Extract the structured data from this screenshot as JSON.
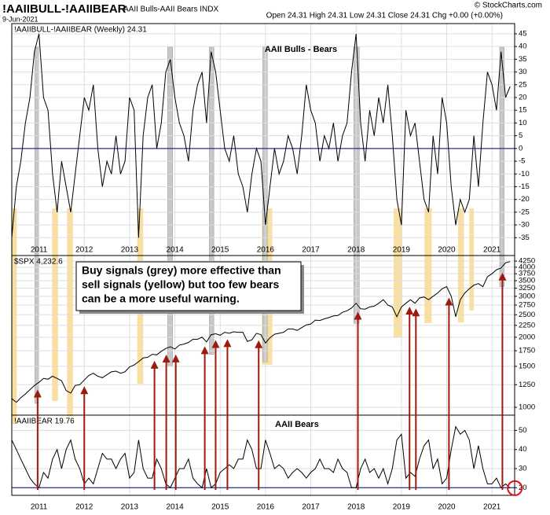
{
  "header": {
    "symbol": "!AAIIBULL-!AAIIBEAR",
    "name": "AAII Bulls-AAII Bears INDX",
    "quote": "Open 24.31 High 24.31 Low 24.31 Close 24.31 Chg +0.00 (+0.00%)",
    "copyright": "© StockCharts.com",
    "date": "9-Jun-2021"
  },
  "annotation": [
    "Buy signals (grey) more effective than",
    "sell signals (yellow) but too few bears",
    "can be a more useful warning."
  ],
  "chart_data": {
    "type": "line",
    "x": [
      2010.4,
      2010.5,
      2010.6,
      2010.7,
      2010.8,
      2010.9,
      2011.0,
      2011.1,
      2011.2,
      2011.3,
      2011.4,
      2011.5,
      2011.6,
      2011.7,
      2011.8,
      2011.9,
      2012.0,
      2012.1,
      2012.2,
      2012.3,
      2012.4,
      2012.5,
      2012.6,
      2012.7,
      2012.8,
      2012.9,
      2013.0,
      2013.1,
      2013.2,
      2013.3,
      2013.4,
      2013.5,
      2013.6,
      2013.7,
      2013.8,
      2013.9,
      2014.0,
      2014.1,
      2014.2,
      2014.3,
      2014.4,
      2014.5,
      2014.6,
      2014.7,
      2014.8,
      2014.9,
      2015.0,
      2015.1,
      2015.2,
      2015.3,
      2015.4,
      2015.5,
      2015.6,
      2015.7,
      2015.8,
      2015.9,
      2016.0,
      2016.1,
      2016.2,
      2016.3,
      2016.4,
      2016.5,
      2016.6,
      2016.7,
      2016.8,
      2016.9,
      2017.0,
      2017.1,
      2017.2,
      2017.3,
      2017.4,
      2017.5,
      2017.6,
      2017.7,
      2017.8,
      2017.9,
      2018.0,
      2018.1,
      2018.2,
      2018.3,
      2018.4,
      2018.5,
      2018.6,
      2018.7,
      2018.8,
      2018.9,
      2019.0,
      2019.1,
      2019.2,
      2019.3,
      2019.4,
      2019.5,
      2019.6,
      2019.7,
      2019.8,
      2019.9,
      2020.0,
      2020.1,
      2020.2,
      2020.3,
      2020.4,
      2020.5,
      2020.6,
      2020.7,
      2020.8,
      2020.9,
      2021.0,
      2021.1,
      2021.2,
      2021.3,
      2021.4
    ],
    "xlim": [
      2010.4,
      2021.5
    ],
    "xticks": [
      2011,
      2012,
      2013,
      2014,
      2015,
      2016,
      2017,
      2018,
      2019,
      2020,
      2021
    ],
    "grid": true,
    "panels": [
      {
        "label": "!AAIIBULL-!AAIIBEAR (Weekly) 24.31",
        "title": "AAII Bulls - Bears",
        "color": "#000000",
        "log": false,
        "ylim": [
          -42,
          49
        ],
        "yticks": [
          -35,
          -30,
          -25,
          -20,
          -15,
          -10,
          -5,
          0,
          5,
          10,
          15,
          20,
          25,
          30,
          35,
          40,
          45
        ],
        "baseline": 0,
        "values": [
          -35,
          -15,
          -5,
          10,
          20,
          38,
          45,
          20,
          15,
          -10,
          -25,
          -5,
          -15,
          -25,
          -10,
          5,
          20,
          15,
          25,
          0,
          -15,
          -5,
          -10,
          5,
          -10,
          -5,
          20,
          15,
          -35,
          5,
          20,
          25,
          0,
          10,
          30,
          35,
          20,
          10,
          5,
          -5,
          15,
          25,
          30,
          10,
          38,
          30,
          15,
          0,
          -5,
          5,
          -10,
          -15,
          -25,
          -10,
          0,
          -5,
          -30,
          -15,
          0,
          -10,
          -5,
          5,
          0,
          -10,
          5,
          25,
          15,
          10,
          -5,
          5,
          0,
          10,
          -5,
          5,
          10,
          30,
          45,
          10,
          -5,
          15,
          5,
          20,
          10,
          25,
          5,
          -20,
          -30,
          15,
          5,
          10,
          -5,
          -20,
          -25,
          5,
          -10,
          20,
          10,
          -15,
          -30,
          -20,
          -25,
          -20,
          5,
          -15,
          10,
          30,
          25,
          15,
          38,
          20,
          24.31
        ]
      },
      {
        "label": "$SPX 4,232.6",
        "color": "#000000",
        "log": true,
        "ylim": [
          925,
          4490
        ],
        "yticks": [
          1000,
          1250,
          1500,
          1750,
          2000,
          2250,
          2500,
          2750,
          3000,
          3250,
          3500,
          3750,
          4000,
          4250
        ],
        "values": [
          1090,
          1050,
          1100,
          1140,
          1190,
          1240,
          1280,
          1330,
          1320,
          1360,
          1330,
          1300,
          1180,
          1150,
          1240,
          1250,
          1310,
          1370,
          1400,
          1360,
          1340,
          1380,
          1420,
          1430,
          1400,
          1420,
          1490,
          1520,
          1570,
          1630,
          1640,
          1690,
          1680,
          1740,
          1790,
          1820,
          1780,
          1850,
          1870,
          1900,
          1960,
          1960,
          2000,
          1910,
          2050,
          2070,
          2040,
          2100,
          2080,
          2110,
          2100,
          2100,
          1920,
          1950,
          2080,
          2050,
          1890,
          1990,
          2060,
          2080,
          2100,
          2170,
          2170,
          2140,
          2200,
          2260,
          2280,
          2370,
          2360,
          2400,
          2430,
          2470,
          2480,
          2560,
          2600,
          2670,
          2800,
          2650,
          2640,
          2700,
          2720,
          2800,
          2900,
          2750,
          2700,
          2450,
          2700,
          2800,
          2900,
          2800,
          2950,
          2980,
          2900,
          3000,
          3100,
          3230,
          3300,
          3000,
          2450,
          2900,
          3100,
          3230,
          3350,
          3400,
          3300,
          3640,
          3750,
          3900,
          3970,
          4180,
          4230
        ]
      },
      {
        "label": "!AAIIBEAR 19.76",
        "title": "AAII Bears",
        "color": "#000000",
        "log": false,
        "ylim": [
          16,
          58
        ],
        "yticks": [
          20,
          30,
          40,
          50
        ],
        "baseline": 20,
        "values": [
          45,
          40,
          35,
          30,
          25,
          22,
          20,
          28,
          25,
          35,
          40,
          30,
          40,
          45,
          35,
          30,
          22,
          25,
          22,
          30,
          38,
          35,
          35,
          30,
          35,
          38,
          25,
          28,
          45,
          30,
          25,
          25,
          35,
          30,
          22,
          20,
          25,
          30,
          30,
          35,
          25,
          22,
          20,
          30,
          20,
          22,
          28,
          30,
          32,
          30,
          35,
          35,
          45,
          40,
          30,
          30,
          45,
          38,
          30,
          32,
          30,
          25,
          28,
          30,
          28,
          25,
          28,
          30,
          35,
          30,
          30,
          28,
          35,
          30,
          28,
          20,
          20,
          30,
          35,
          28,
          30,
          25,
          30,
          22,
          30,
          45,
          48,
          25,
          28,
          26,
          35,
          42,
          45,
          30,
          35,
          22,
          25,
          40,
          52,
          48,
          50,
          45,
          30,
          42,
          30,
          22,
          22,
          25,
          20,
          22,
          19.76
        ]
      }
    ],
    "buy_signals": [
      [
        2010.91,
        2011.0
      ],
      [
        2013.84,
        2013.95
      ],
      [
        2014.76,
        2014.86
      ],
      [
        2015.94,
        2016.04
      ],
      [
        2017.95,
        2018.07
      ],
      [
        2021.17,
        2021.27
      ]
    ],
    "buy_color": "#c8c8c8",
    "sell_signals": [
      [
        2010.39,
        2010.51
      ],
      [
        2011.29,
        2011.42
      ],
      [
        2011.62,
        2011.75
      ],
      [
        2013.17,
        2013.3
      ],
      [
        2015.92,
        2016.15
      ],
      [
        2018.83,
        2019.02
      ],
      [
        2019.51,
        2019.67
      ],
      [
        2020.25,
        2020.38
      ],
      [
        2020.5,
        2020.6
      ]
    ],
    "sell_color": "#f9dfa0",
    "arrows": [
      2010.97,
      2012.0,
      2013.55,
      2013.81,
      2014.02,
      2014.66,
      2014.9,
      2015.16,
      2015.85,
      2018.04,
      2019.18,
      2019.32,
      2020.05,
      2021.23
    ],
    "arrow_color": "#9b1b0f"
  }
}
